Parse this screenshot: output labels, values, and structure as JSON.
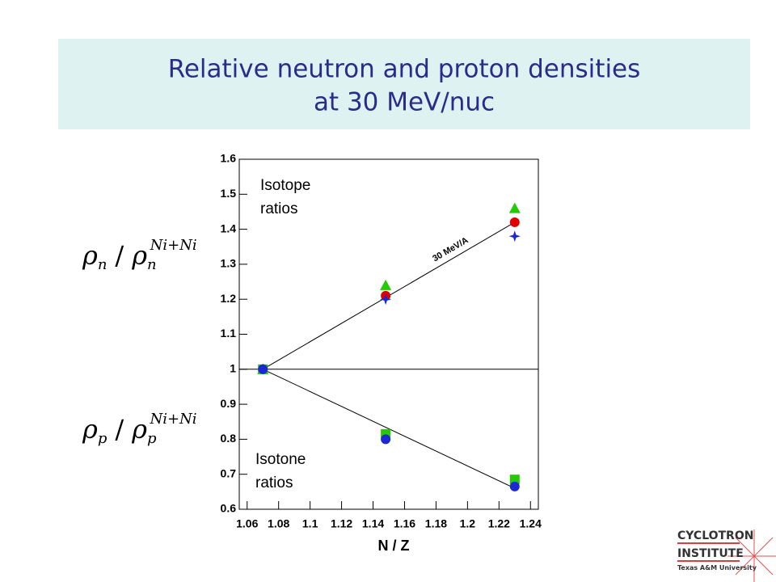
{
  "slide": {
    "title_lines": [
      "Relative neutron and proton densities",
      "at 30 MeV/nuc"
    ],
    "neutron_label": {
      "symbol": "ρ",
      "sub": "n",
      "sep": "/",
      "sup": "Ni+Ni"
    },
    "proton_label": {
      "symbol": "ρ",
      "sub": "p",
      "sep": "/",
      "sup": "Ni+Ni"
    },
    "logo": {
      "line1": "CYCLOTRON",
      "line2": "INSTITUTE",
      "line3": "Texas A&M University"
    }
  },
  "chart_data": {
    "type": "scatter",
    "x_label": "N / Z",
    "x": [
      1.07,
      1.148,
      1.23
    ],
    "series": [
      {
        "color": "#22cc00",
        "marker": "triangle",
        "values": [
          1.0,
          1.24,
          1.46
        ]
      },
      {
        "color": "#e00000",
        "marker": "circle",
        "values": [
          1.0,
          1.21,
          1.42
        ]
      },
      {
        "color": "#1a2ad0",
        "marker": "star",
        "values": [
          1.0,
          1.2,
          1.38
        ]
      },
      {
        "color": "#22cc00",
        "marker": "square",
        "values": [
          1.0,
          0.815,
          0.685
        ]
      },
      {
        "color": "#1a2ad0",
        "marker": "circle",
        "values": [
          1.0,
          0.8,
          0.665
        ]
      }
    ],
    "fit_lines": [
      {
        "label": "30 MeV/A",
        "x": [
          1.07,
          1.23
        ],
        "y": [
          1.0,
          1.42
        ]
      },
      {
        "x": [
          1.07,
          1.23
        ],
        "y": [
          1.0,
          0.66
        ]
      }
    ],
    "reference_line": 1,
    "annotations": [
      {
        "lines": [
          "Isotope",
          "ratios"
        ]
      },
      {
        "lines": [
          "Isotone",
          "ratios"
        ]
      }
    ],
    "xlim": [
      1.055,
      1.245
    ],
    "xticks": [
      1.06,
      1.08,
      1.1,
      1.12,
      1.14,
      1.16,
      1.18,
      1.2,
      1.22,
      1.24
    ],
    "ylim": [
      0.6,
      1.6
    ],
    "yticks": [
      0.6,
      0.7,
      0.8,
      0.9,
      1,
      1.1,
      1.2,
      1.3,
      1.4,
      1.5,
      1.6
    ]
  }
}
